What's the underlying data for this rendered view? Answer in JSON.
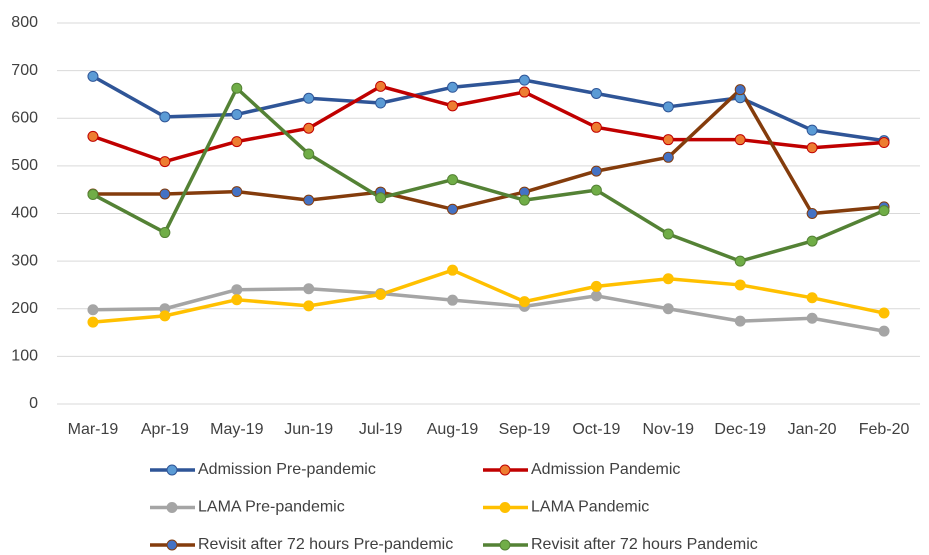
{
  "chart_data": {
    "type": "line",
    "categories": [
      "Mar-19",
      "Apr-19",
      "May-19",
      "Jun-19",
      "Jul-19",
      "Aug-19",
      "Sep-19",
      "Oct-19",
      "Nov-19",
      "Dec-19",
      "Jan-20",
      "Feb-20"
    ],
    "ylim": [
      0,
      800
    ],
    "yticks": [
      0,
      100,
      200,
      300,
      400,
      500,
      600,
      700,
      800
    ],
    "grid": true,
    "legend": "bottom",
    "series": [
      {
        "name": "Admission Pre-pandemic",
        "color": "#2f5597",
        "marker_color": "#5b9bd5",
        "values": [
          688,
          603,
          608,
          642,
          632,
          665,
          680,
          652,
          624,
          643,
          575,
          553
        ]
      },
      {
        "name": "Admission Pandemic",
        "color": "#c00000",
        "marker_color": "#ed7d31",
        "values": [
          562,
          509,
          551,
          579,
          667,
          626,
          655,
          581,
          555,
          555,
          538,
          549
        ]
      },
      {
        "name": "LAMA Pre-pandemic",
        "color": "#a5a5a5",
        "marker_color": "#a5a5a5",
        "values": [
          198,
          200,
          240,
          242,
          232,
          218,
          205,
          227,
          200,
          174,
          180,
          153
        ]
      },
      {
        "name": "LAMA Pandemic",
        "color": "#ffc000",
        "marker_color": "#ffc000",
        "values": [
          172,
          185,
          219,
          206,
          230,
          281,
          215,
          247,
          263,
          250,
          223,
          191
        ]
      },
      {
        "name": "Revisit after 72 hours Pre-pandemic",
        "color": "#843c0c",
        "marker_color": "#4472c4",
        "values": [
          441,
          441,
          446,
          428,
          445,
          409,
          445,
          489,
          518,
          660,
          400,
          414
        ]
      },
      {
        "name": "Revisit after 72 hours Pandemic",
        "color": "#548235",
        "marker_color": "#70ad47",
        "values": [
          440,
          360,
          663,
          525,
          433,
          471,
          428,
          449,
          357,
          300,
          342,
          406
        ]
      }
    ]
  }
}
